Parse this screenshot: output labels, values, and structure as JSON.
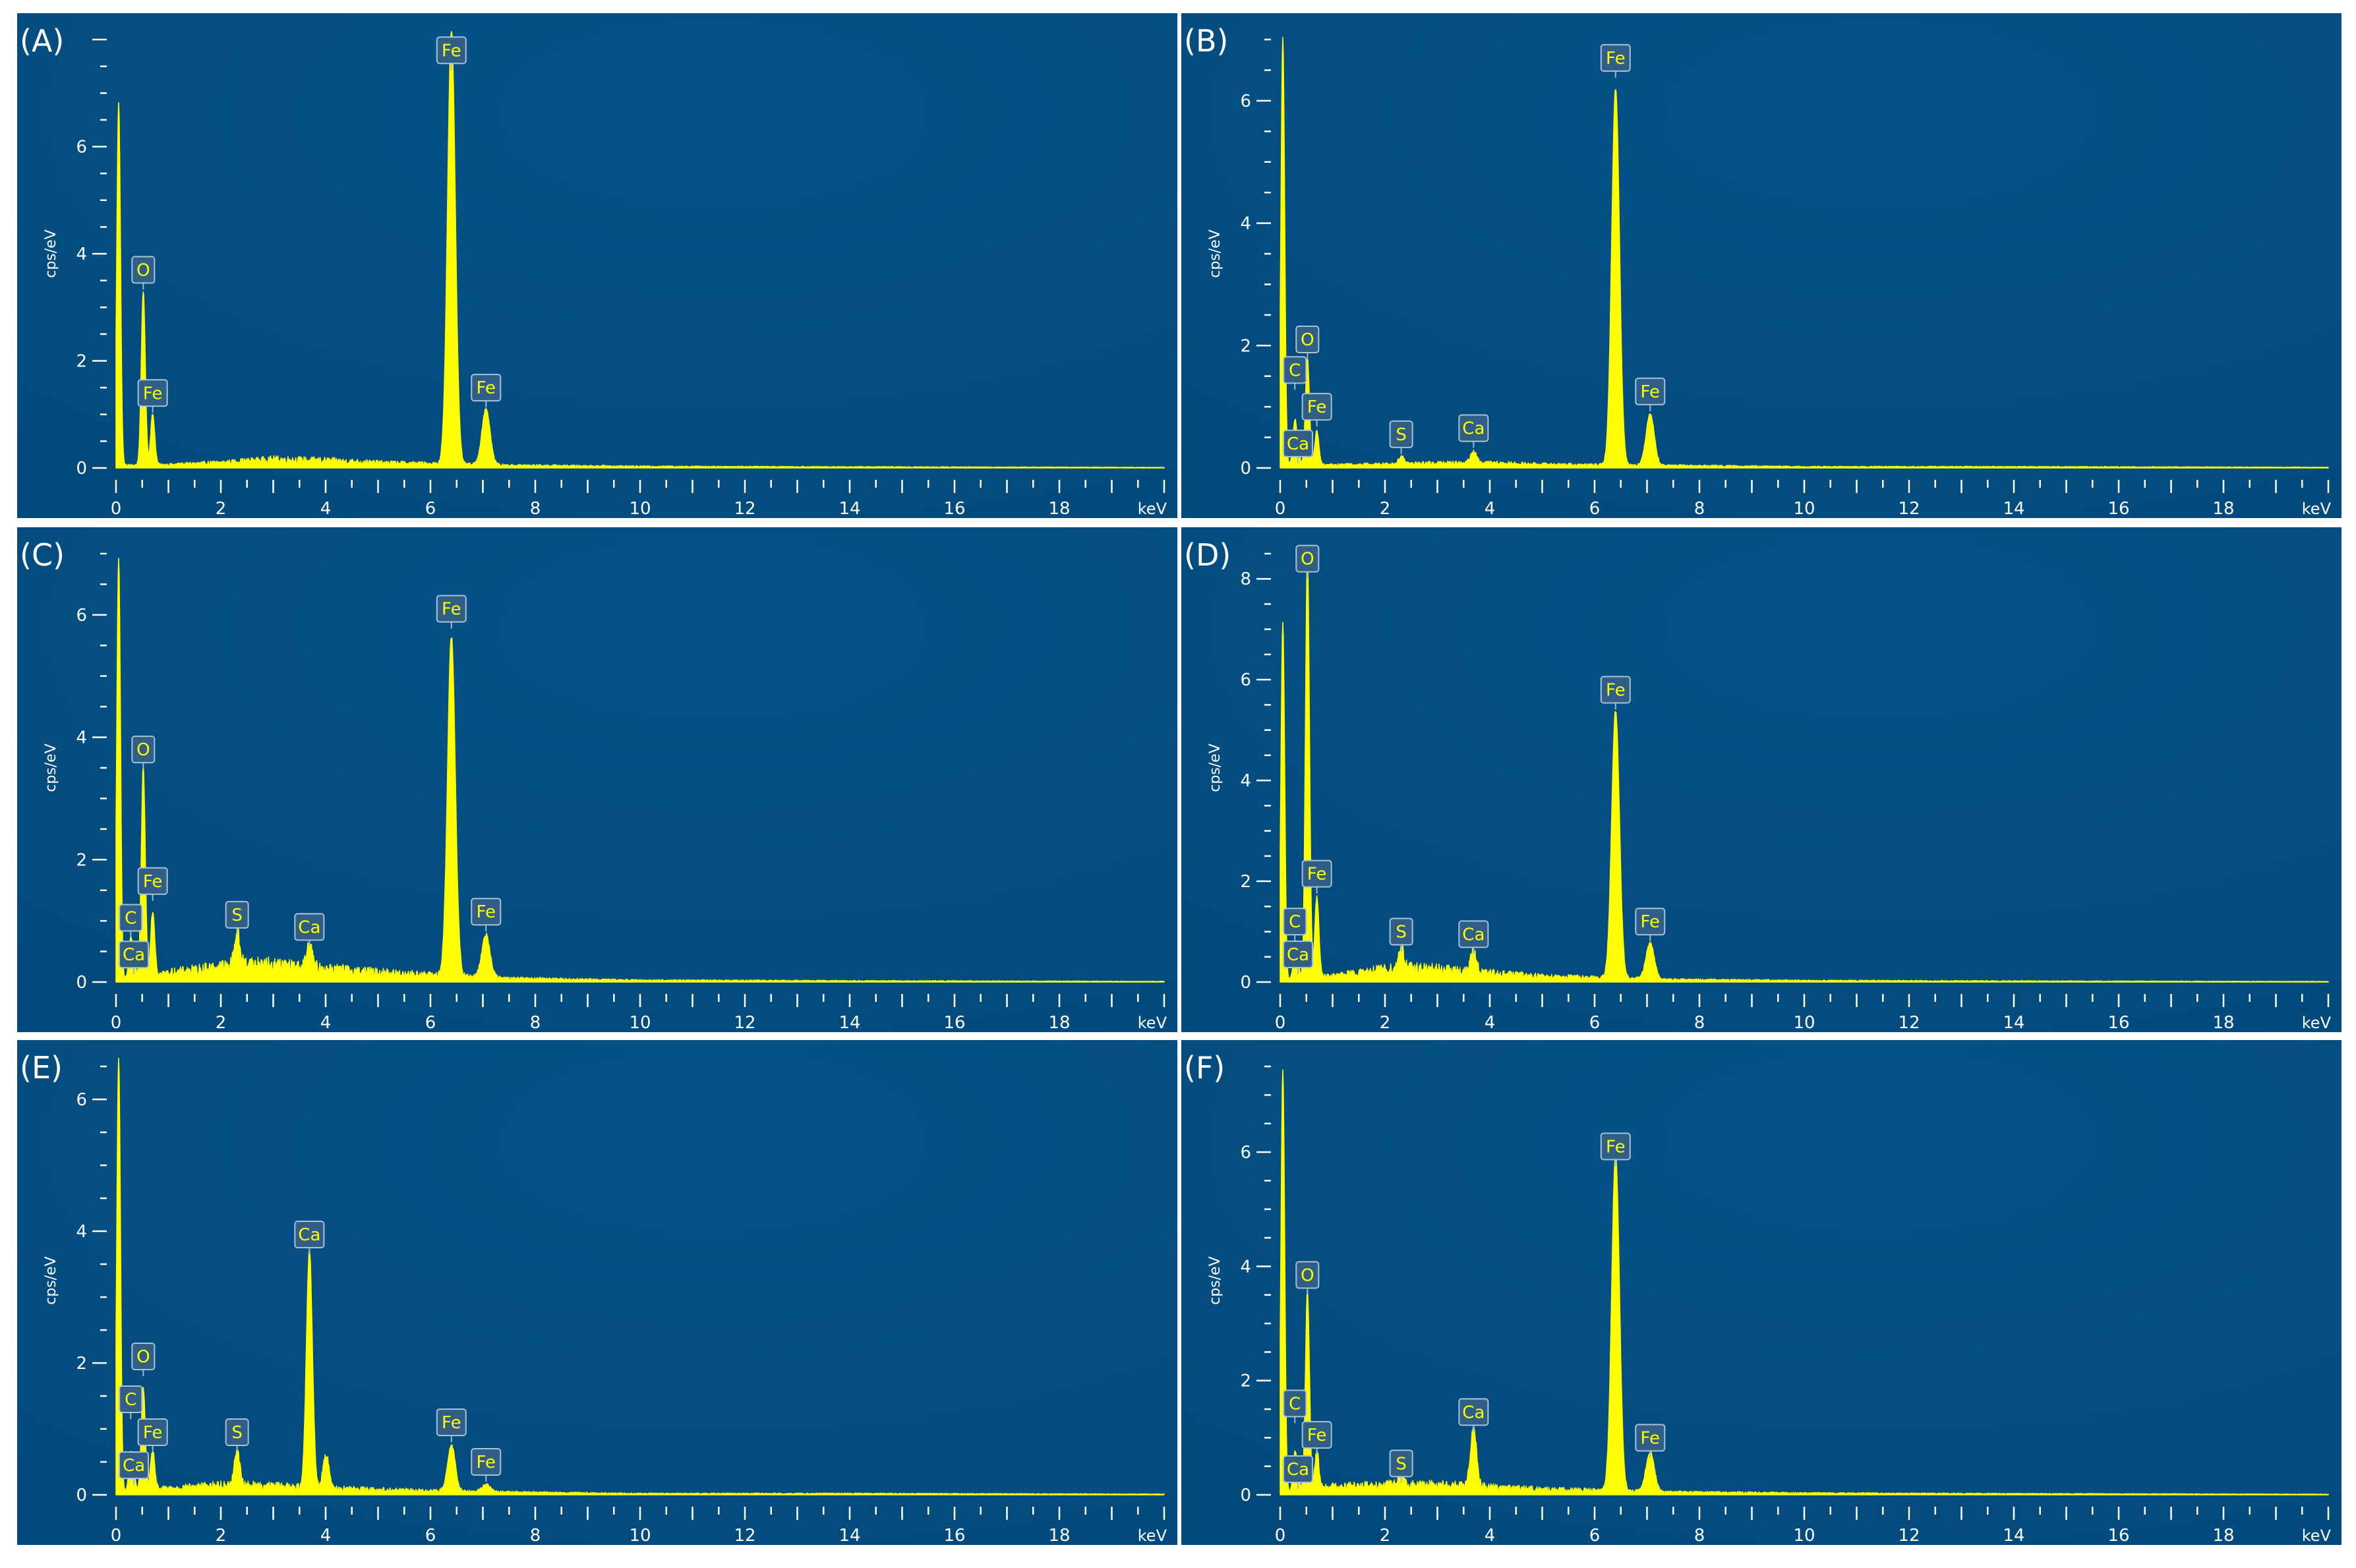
{
  "figure": {
    "panel_bg_color_center": "#06538a",
    "panel_bg_color_edge": "#034a7c",
    "spectrum_color": "#ffff00",
    "axis_color": "#ffffff",
    "label_box_color": "#2f5f86"
  },
  "chart_data": [
    {
      "panel_label": "(A)",
      "type": "line",
      "xlabel": "keV",
      "ylabel": "cps/eV",
      "xlim": [
        0,
        20
      ],
      "ylim": [
        0,
        8
      ],
      "x_ticks": [
        0,
        2,
        4,
        6,
        8,
        10,
        12,
        14,
        16,
        18
      ],
      "y_ticks": [
        0,
        2,
        4,
        6
      ],
      "background": [
        [
          0,
          0.02
        ],
        [
          0.2,
          0.05
        ],
        [
          1.0,
          0.06
        ],
        [
          2.0,
          0.1
        ],
        [
          3.0,
          0.16
        ],
        [
          4.0,
          0.14
        ],
        [
          5.0,
          0.1
        ],
        [
          6.0,
          0.08
        ],
        [
          7.5,
          0.05
        ],
        [
          10,
          0.03
        ],
        [
          14,
          0.02
        ],
        [
          20,
          0.01
        ]
      ],
      "peaks": [
        {
          "element": "",
          "keV": 0.05,
          "cps_per_eV": 6.8,
          "label_cps_per_eV": null
        },
        {
          "element": "O",
          "keV": 0.52,
          "cps_per_eV": 3.25,
          "label_cps_per_eV": 3.7
        },
        {
          "element": "Fe",
          "keV": 0.7,
          "cps_per_eV": 0.95,
          "label_cps_per_eV": 1.4
        },
        {
          "element": "Fe",
          "keV": 6.4,
          "cps_per_eV": 8.1,
          "label_cps_per_eV": 7.8
        },
        {
          "element": "Fe",
          "keV": 7.06,
          "cps_per_eV": 1.05,
          "label_cps_per_eV": 1.5
        }
      ]
    },
    {
      "panel_label": "(B)",
      "type": "line",
      "xlabel": "keV",
      "ylabel": "cps/eV",
      "xlim": [
        0,
        20
      ],
      "ylim": [
        0,
        7
      ],
      "x_ticks": [
        0,
        2,
        4,
        6,
        8,
        10,
        12,
        14,
        16,
        18
      ],
      "y_ticks": [
        0,
        2,
        4,
        6
      ],
      "background": [
        [
          0,
          0.02
        ],
        [
          0.2,
          0.05
        ],
        [
          1.0,
          0.05
        ],
        [
          2.0,
          0.06
        ],
        [
          3.0,
          0.08
        ],
        [
          4.0,
          0.08
        ],
        [
          5.0,
          0.06
        ],
        [
          6.0,
          0.05
        ],
        [
          7.5,
          0.04
        ],
        [
          10,
          0.02
        ],
        [
          14,
          0.02
        ],
        [
          20,
          0.01
        ]
      ],
      "peaks": [
        {
          "element": "",
          "keV": 0.05,
          "cps_per_eV": 7.0,
          "label_cps_per_eV": null
        },
        {
          "element": "C",
          "keV": 0.28,
          "cps_per_eV": 0.7,
          "label_cps_per_eV": 1.6
        },
        {
          "element": "O",
          "keV": 0.52,
          "cps_per_eV": 1.75,
          "label_cps_per_eV": 2.1
        },
        {
          "element": "Ca",
          "keV": 0.34,
          "cps_per_eV": 0.15,
          "label_cps_per_eV": 0.4
        },
        {
          "element": "Fe",
          "keV": 0.7,
          "cps_per_eV": 0.55,
          "label_cps_per_eV": 1.0
        },
        {
          "element": "S",
          "keV": 2.31,
          "cps_per_eV": 0.12,
          "label_cps_per_eV": 0.55
        },
        {
          "element": "Ca",
          "keV": 3.69,
          "cps_per_eV": 0.18,
          "label_cps_per_eV": 0.65
        },
        {
          "element": "Fe",
          "keV": 6.4,
          "cps_per_eV": 6.15,
          "label_cps_per_eV": 6.7
        },
        {
          "element": "Fe",
          "keV": 7.06,
          "cps_per_eV": 0.85,
          "label_cps_per_eV": 1.25
        }
      ]
    },
    {
      "panel_label": "(C)",
      "type": "line",
      "xlabel": "keV",
      "ylabel": "cps/eV",
      "xlim": [
        0,
        20
      ],
      "ylim": [
        0,
        7
      ],
      "x_ticks": [
        0,
        2,
        4,
        6,
        8,
        10,
        12,
        14,
        16,
        18
      ],
      "y_ticks": [
        0,
        2,
        4,
        6
      ],
      "background": [
        [
          0,
          0.02
        ],
        [
          0.2,
          0.05
        ],
        [
          1.0,
          0.15
        ],
        [
          2.0,
          0.25
        ],
        [
          2.5,
          0.3
        ],
        [
          3.0,
          0.28
        ],
        [
          4.0,
          0.22
        ],
        [
          5.0,
          0.16
        ],
        [
          6.0,
          0.12
        ],
        [
          7.5,
          0.06
        ],
        [
          10,
          0.03
        ],
        [
          14,
          0.02
        ],
        [
          20,
          0.01
        ]
      ],
      "peaks": [
        {
          "element": "",
          "keV": 0.05,
          "cps_per_eV": 6.9,
          "label_cps_per_eV": null
        },
        {
          "element": "C",
          "keV": 0.28,
          "cps_per_eV": 0.6,
          "label_cps_per_eV": 1.05
        },
        {
          "element": "O",
          "keV": 0.52,
          "cps_per_eV": 3.4,
          "label_cps_per_eV": 3.8
        },
        {
          "element": "Ca",
          "keV": 0.34,
          "cps_per_eV": 0.2,
          "label_cps_per_eV": 0.45
        },
        {
          "element": "Fe",
          "keV": 0.7,
          "cps_per_eV": 1.05,
          "label_cps_per_eV": 1.65
        },
        {
          "element": "S",
          "keV": 2.31,
          "cps_per_eV": 0.55,
          "label_cps_per_eV": 1.1
        },
        {
          "element": "Ca",
          "keV": 3.69,
          "cps_per_eV": 0.35,
          "label_cps_per_eV": 0.9
        },
        {
          "element": "Fe",
          "keV": 6.4,
          "cps_per_eV": 5.55,
          "label_cps_per_eV": 6.1
        },
        {
          "element": "Fe",
          "keV": 7.06,
          "cps_per_eV": 0.7,
          "label_cps_per_eV": 1.15
        }
      ]
    },
    {
      "panel_label": "(D)",
      "type": "line",
      "xlabel": "keV",
      "ylabel": "cps/eV",
      "xlim": [
        0,
        20
      ],
      "ylim": [
        0,
        8.5
      ],
      "x_ticks": [
        0,
        2,
        4,
        6,
        8,
        10,
        12,
        14,
        16,
        18
      ],
      "y_ticks": [
        0,
        2,
        4,
        6,
        8
      ],
      "background": [
        [
          0,
          0.02
        ],
        [
          0.2,
          0.05
        ],
        [
          1.0,
          0.12
        ],
        [
          2.0,
          0.25
        ],
        [
          2.5,
          0.28
        ],
        [
          3.0,
          0.25
        ],
        [
          4.0,
          0.18
        ],
        [
          5.0,
          0.12
        ],
        [
          6.0,
          0.09
        ],
        [
          7.5,
          0.05
        ],
        [
          10,
          0.03
        ],
        [
          14,
          0.02
        ],
        [
          20,
          0.01
        ]
      ],
      "peaks": [
        {
          "element": "",
          "keV": 0.05,
          "cps_per_eV": 7.1,
          "label_cps_per_eV": null
        },
        {
          "element": "C",
          "keV": 0.28,
          "cps_per_eV": 0.45,
          "label_cps_per_eV": 1.2
        },
        {
          "element": "O",
          "keV": 0.52,
          "cps_per_eV": 8.45,
          "label_cps_per_eV": 8.4
        },
        {
          "element": "Ca",
          "keV": 0.34,
          "cps_per_eV": 0.2,
          "label_cps_per_eV": 0.55
        },
        {
          "element": "Fe",
          "keV": 0.7,
          "cps_per_eV": 1.6,
          "label_cps_per_eV": 2.15
        },
        {
          "element": "S",
          "keV": 2.31,
          "cps_per_eV": 0.45,
          "label_cps_per_eV": 1.0
        },
        {
          "element": "Ca",
          "keV": 3.69,
          "cps_per_eV": 0.4,
          "label_cps_per_eV": 0.95
        },
        {
          "element": "Fe",
          "keV": 6.4,
          "cps_per_eV": 5.3,
          "label_cps_per_eV": 5.8
        },
        {
          "element": "Fe",
          "keV": 7.06,
          "cps_per_eV": 0.72,
          "label_cps_per_eV": 1.2
        }
      ]
    },
    {
      "panel_label": "(E)",
      "type": "line",
      "xlabel": "keV",
      "ylabel": "cps/eV",
      "xlim": [
        0,
        20
      ],
      "ylim": [
        0,
        6.5
      ],
      "x_ticks": [
        0,
        2,
        4,
        6,
        8,
        10,
        12,
        14,
        16,
        18
      ],
      "y_ticks": [
        0,
        2,
        4,
        6
      ],
      "background": [
        [
          0,
          0.02
        ],
        [
          0.2,
          0.05
        ],
        [
          1.0,
          0.1
        ],
        [
          2.0,
          0.15
        ],
        [
          3.0,
          0.14
        ],
        [
          4.0,
          0.1
        ],
        [
          5.0,
          0.08
        ],
        [
          6.0,
          0.06
        ],
        [
          7.5,
          0.04
        ],
        [
          10,
          0.02
        ],
        [
          14,
          0.02
        ],
        [
          20,
          0.01
        ]
      ],
      "peaks": [
        {
          "element": "",
          "keV": 0.05,
          "cps_per_eV": 6.6,
          "label_cps_per_eV": null
        },
        {
          "element": "C",
          "keV": 0.28,
          "cps_per_eV": 0.55,
          "label_cps_per_eV": 1.45
        },
        {
          "element": "O",
          "keV": 0.52,
          "cps_per_eV": 1.55,
          "label_cps_per_eV": 2.1
        },
        {
          "element": "Ca",
          "keV": 0.34,
          "cps_per_eV": 0.2,
          "label_cps_per_eV": 0.45
        },
        {
          "element": "Fe",
          "keV": 0.7,
          "cps_per_eV": 0.6,
          "label_cps_per_eV": 0.95
        },
        {
          "element": "S",
          "keV": 2.31,
          "cps_per_eV": 0.55,
          "label_cps_per_eV": 0.95
        },
        {
          "element": "Ca",
          "keV": 3.69,
          "cps_per_eV": 3.6,
          "label_cps_per_eV": 3.95
        },
        {
          "element": "",
          "keV": 4.01,
          "cps_per_eV": 0.5,
          "label_cps_per_eV": null
        },
        {
          "element": "Fe",
          "keV": 6.4,
          "cps_per_eV": 0.7,
          "label_cps_per_eV": 1.1
        },
        {
          "element": "Fe",
          "keV": 7.06,
          "cps_per_eV": 0.12,
          "label_cps_per_eV": 0.5
        }
      ]
    },
    {
      "panel_label": "(F)",
      "type": "line",
      "xlabel": "keV",
      "ylabel": "cps/eV",
      "xlim": [
        0,
        20
      ],
      "ylim": [
        0,
        7.5
      ],
      "x_ticks": [
        0,
        2,
        4,
        6,
        8,
        10,
        12,
        14,
        16,
        18
      ],
      "y_ticks": [
        0,
        2,
        4,
        6
      ],
      "background": [
        [
          0,
          0.02
        ],
        [
          0.2,
          0.05
        ],
        [
          1.0,
          0.15
        ],
        [
          2.0,
          0.18
        ],
        [
          3.0,
          0.18
        ],
        [
          4.0,
          0.14
        ],
        [
          5.0,
          0.1
        ],
        [
          6.0,
          0.08
        ],
        [
          7.5,
          0.05
        ],
        [
          10,
          0.03
        ],
        [
          14,
          0.02
        ],
        [
          20,
          0.01
        ]
      ],
      "peaks": [
        {
          "element": "",
          "keV": 0.05,
          "cps_per_eV": 7.4,
          "label_cps_per_eV": null
        },
        {
          "element": "C",
          "keV": 0.28,
          "cps_per_eV": 0.65,
          "label_cps_per_eV": 1.6
        },
        {
          "element": "O",
          "keV": 0.52,
          "cps_per_eV": 3.5,
          "label_cps_per_eV": 3.85
        },
        {
          "element": "Ca",
          "keV": 0.34,
          "cps_per_eV": 0.2,
          "label_cps_per_eV": 0.45
        },
        {
          "element": "Fe",
          "keV": 0.7,
          "cps_per_eV": 0.65,
          "label_cps_per_eV": 1.05
        },
        {
          "element": "S",
          "keV": 2.31,
          "cps_per_eV": 0.2,
          "label_cps_per_eV": 0.55
        },
        {
          "element": "Ca",
          "keV": 3.69,
          "cps_per_eV": 1.05,
          "label_cps_per_eV": 1.45
        },
        {
          "element": "Fe",
          "keV": 6.4,
          "cps_per_eV": 5.9,
          "label_cps_per_eV": 6.1
        },
        {
          "element": "Fe",
          "keV": 7.06,
          "cps_per_eV": 0.7,
          "label_cps_per_eV": 1.0
        }
      ]
    }
  ]
}
